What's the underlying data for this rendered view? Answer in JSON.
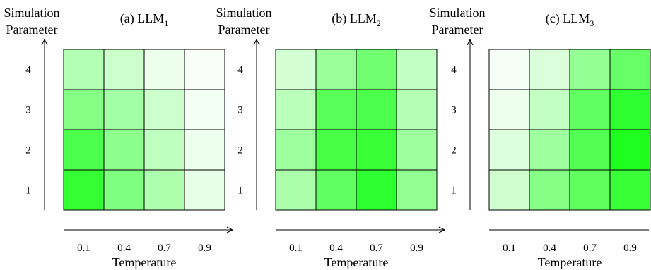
{
  "chart_data": [
    {
      "type": "heatmap",
      "title_prefix": "(a) LLM",
      "title_subscript": "1",
      "xlabel": "Temperature",
      "ylabel": [
        "Simulation",
        "Parameter"
      ],
      "x_categories": [
        "0.1",
        "0.4",
        "0.7",
        "0.9"
      ],
      "y_categories": [
        "1",
        "2",
        "3",
        "4"
      ],
      "values": [
        [
          0.8,
          0.5,
          0.32,
          0.1
        ],
        [
          0.7,
          0.45,
          0.25,
          0.07
        ],
        [
          0.48,
          0.36,
          0.2,
          0.05
        ],
        [
          0.3,
          0.2,
          0.08,
          0.03
        ]
      ],
      "color_low": "#ffffff",
      "color_high": "#00ff00",
      "grid": true
    },
    {
      "type": "heatmap",
      "title_prefix": "(b) LLM",
      "title_subscript": "2",
      "xlabel": "Temperature",
      "ylabel": [
        "Simulation",
        "Parameter"
      ],
      "x_categories": [
        "0.1",
        "0.4",
        "0.7",
        "0.9"
      ],
      "y_categories": [
        "1",
        "2",
        "3",
        "4"
      ],
      "values": [
        [
          0.33,
          0.62,
          0.82,
          0.43
        ],
        [
          0.38,
          0.72,
          0.78,
          0.38
        ],
        [
          0.27,
          0.66,
          0.7,
          0.29
        ],
        [
          0.17,
          0.4,
          0.56,
          0.24
        ]
      ],
      "color_low": "#ffffff",
      "color_high": "#00ff00",
      "grid": true
    },
    {
      "type": "heatmap",
      "title_prefix": "(c) LLM",
      "title_subscript": "3",
      "xlabel": "Temperature",
      "ylabel": [
        "Simulation",
        "Parameter"
      ],
      "x_categories": [
        "0.1",
        "0.4",
        "0.7",
        "0.9"
      ],
      "y_categories": [
        "1",
        "2",
        "3",
        "4"
      ],
      "values": [
        [
          0.19,
          0.48,
          0.63,
          0.78
        ],
        [
          0.13,
          0.38,
          0.68,
          0.88
        ],
        [
          0.07,
          0.24,
          0.62,
          0.82
        ],
        [
          0.04,
          0.14,
          0.42,
          0.6
        ]
      ],
      "color_low": "#ffffff",
      "color_high": "#00ff00",
      "grid": true
    }
  ]
}
